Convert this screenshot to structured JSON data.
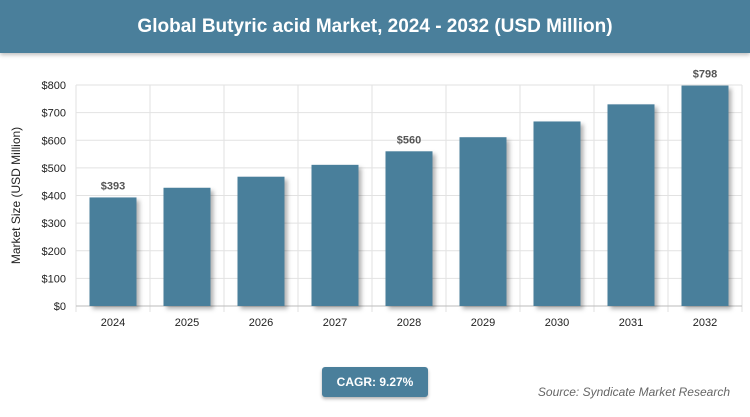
{
  "title": "Global Butyric acid Market, 2024 - 2032 (USD Million)",
  "cagr": "CAGR: 9.27%",
  "source": "Source: Syndicate Market Research",
  "colors": {
    "bar": "#4a7f9b",
    "header": "#4a7f9b"
  },
  "chart_data": {
    "type": "bar",
    "categories": [
      "2024",
      "2025",
      "2026",
      "2027",
      "2028",
      "2029",
      "2030",
      "2031",
      "2032"
    ],
    "values": [
      393,
      428,
      468,
      511,
      560,
      611,
      668,
      730,
      798
    ],
    "data_labels": [
      "$393",
      "",
      "",
      "",
      "$560",
      "",
      "",
      "",
      "$798"
    ],
    "ylabel": "Market Size (USD Million)",
    "xlabel": "",
    "ylim": [
      0,
      800
    ],
    "yticks": [
      0,
      100,
      200,
      300,
      400,
      500,
      600,
      700,
      800
    ],
    "ytick_labels": [
      "$0",
      "$100",
      "$200",
      "$300",
      "$400",
      "$500",
      "$600",
      "$700",
      "$800"
    ],
    "grid": true
  }
}
